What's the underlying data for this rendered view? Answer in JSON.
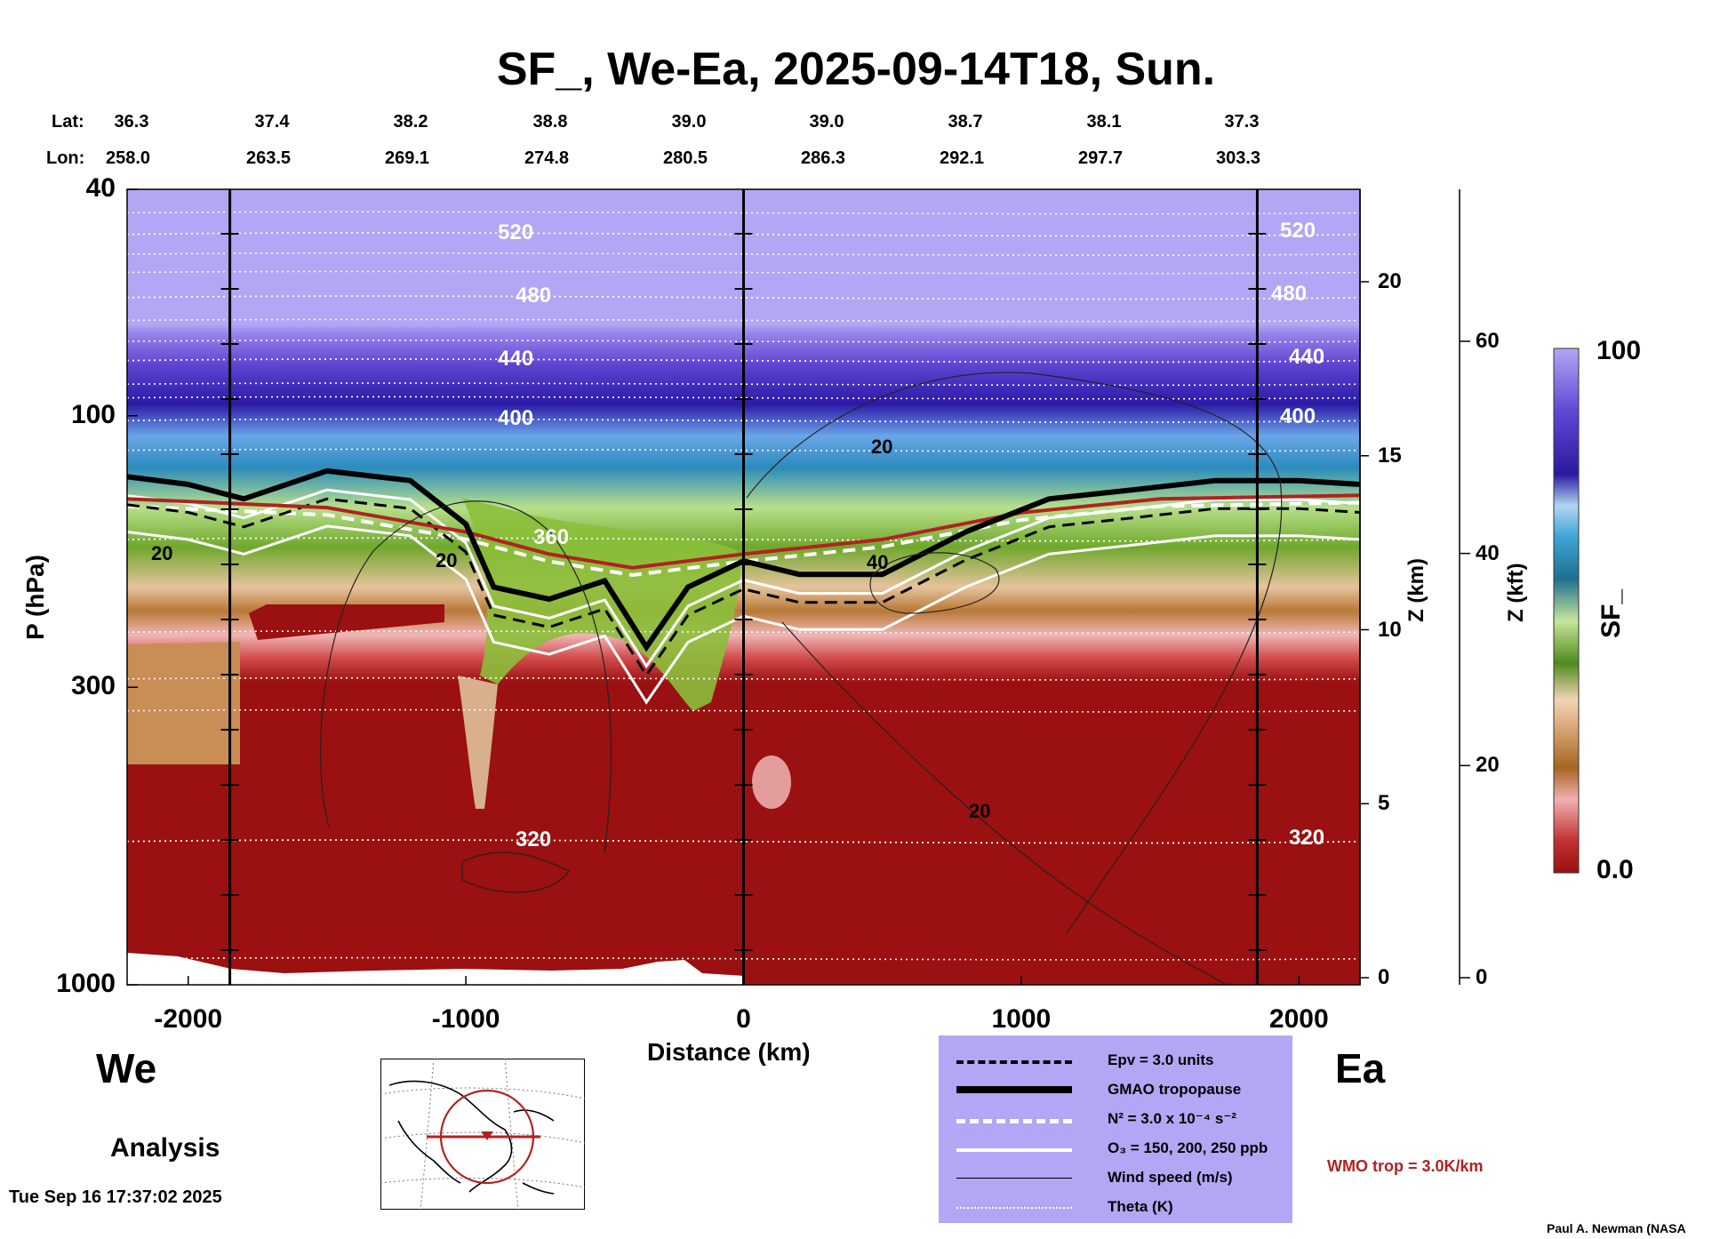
{
  "chart_data": {
    "type": "heatmap",
    "title": "SF_, We-Ea, 2025-09-14T18, Sun.",
    "xlabel": "Distance (km)",
    "ylabel": "P (hPa)",
    "y2label": "Z (km)",
    "y3label": "Z (kft)",
    "colorbar_label": "SF_",
    "colorbar_range": {
      "min_label": "0.0",
      "max_label": "100"
    },
    "x_range": [
      -2220,
      2220
    ],
    "y_range_hpa": [
      1000,
      40
    ],
    "x_ticks": [
      -2000,
      -1000,
      0,
      1000,
      2000
    ],
    "x_tick_labels": [
      "-2000",
      "-1000",
      "0",
      "1000",
      "2000"
    ],
    "p_ticks": [
      40,
      100,
      300,
      1000
    ],
    "p_tick_labels": [
      "40",
      "100",
      "300",
      "1000"
    ],
    "z_km_ticks": [
      0,
      5,
      10,
      15,
      20
    ],
    "z_km_tick_labels": [
      "0",
      "5",
      "10",
      "15",
      "20"
    ],
    "z_kft_ticks": [
      0,
      20,
      40,
      60
    ],
    "z_kft_tick_labels": [
      "0",
      "20",
      "40",
      "60"
    ],
    "lat_label": "Lat:",
    "lon_label": "Lon:",
    "lat": [
      "36.3",
      "37.4",
      "38.2",
      "38.8",
      "39.0",
      "39.0",
      "38.7",
      "38.1",
      "37.3"
    ],
    "lon": [
      "258.0",
      "263.5",
      "269.1",
      "274.8",
      "280.5",
      "286.3",
      "292.1",
      "297.7",
      "303.3"
    ],
    "vertical_lines_km": [
      -1850,
      0,
      1850
    ],
    "theta_contours": [
      {
        "label": "520",
        "p_hpa": 48
      },
      {
        "label": "480",
        "p_hpa": 62
      },
      {
        "label": "440",
        "p_hpa": 80
      },
      {
        "label": "400",
        "p_hpa": 102
      },
      {
        "label": "360",
        "p_hpa": 165
      },
      {
        "label": "320",
        "p_hpa": 560
      }
    ],
    "wind_speed_labels": [
      "20",
      "20",
      "20",
      "40",
      "20"
    ],
    "tropopause_p_hpa": {
      "x_km": [
        -2220,
        -2000,
        -1800,
        -1500,
        -1200,
        -1000,
        -900,
        -700,
        -500,
        -350,
        -200,
        0,
        200,
        500,
        800,
        1100,
        1400,
        1700,
        2000,
        2220
      ],
      "p": [
        128,
        132,
        140,
        125,
        130,
        155,
        200,
        210,
        195,
        255,
        200,
        180,
        190,
        190,
        160,
        140,
        135,
        130,
        130,
        132
      ]
    },
    "wmo_tropopause_p_hpa": {
      "x_km": [
        -2220,
        -1500,
        -1000,
        -700,
        -400,
        0,
        500,
        1000,
        1500,
        2220
      ],
      "p": [
        140,
        145,
        160,
        175,
        185,
        175,
        165,
        148,
        140,
        138
      ]
    }
  },
  "panel": {
    "we_label": "We",
    "ea_label": "Ea",
    "analysis_label": "Analysis",
    "timestamp": "Tue Sep 16 17:37:02 2025",
    "credit": "Paul A. Newman (NASA",
    "wmo_label": "WMO trop = 3.0K/km"
  },
  "legend": {
    "items": [
      {
        "label": "Epv = 3.0 units",
        "style": "dashed-black"
      },
      {
        "label": "GMAO tropopause",
        "style": "thick-black"
      },
      {
        "label": "N² = 3.0 x 10⁻⁴ s⁻²",
        "style": "dashed-white"
      },
      {
        "label": "O₃ = 150, 200, 250 ppb",
        "style": "solid-white"
      },
      {
        "label": "Wind speed (m/s)",
        "style": "thin-black"
      },
      {
        "label": "Theta (K)",
        "style": "dotted-white"
      }
    ]
  },
  "colors": {
    "low": "#9b1010",
    "mid_tan": "#d9b08c",
    "mid_green": "#8bbf3a",
    "mid_blue": "#2a8fbf",
    "high_dark": "#2a1aa0",
    "top": "#b3a6f4",
    "wmo": "#b22222",
    "legend_bg": "#b3a6f4"
  }
}
